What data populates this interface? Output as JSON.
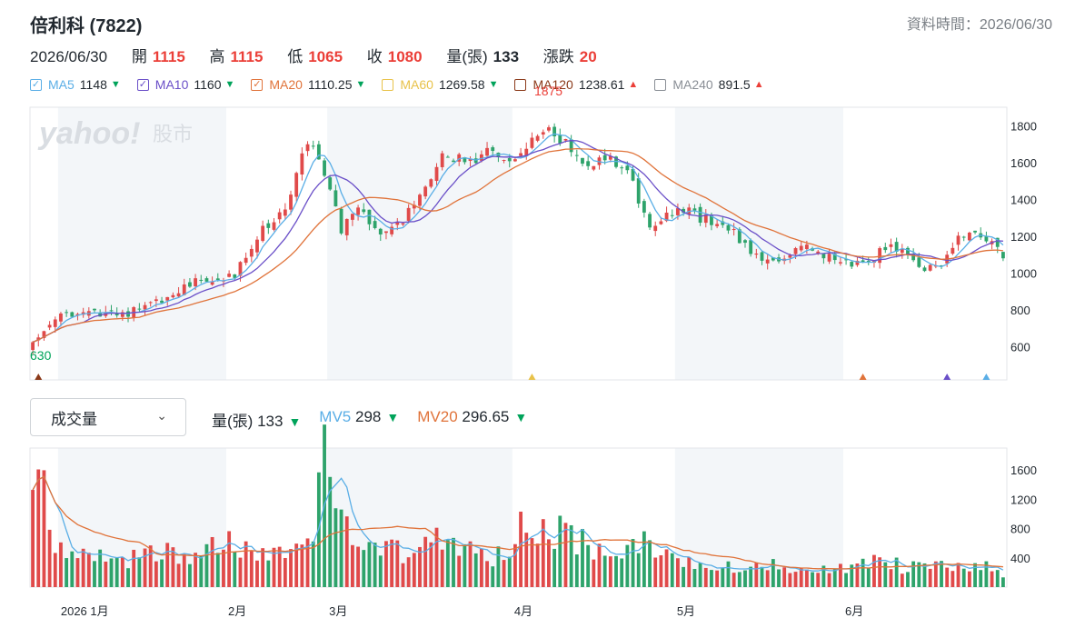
{
  "header": {
    "title": "倍利科 (7822)",
    "datatime_label": "資料時間：2026/06/30"
  },
  "ohlc": {
    "date": "2026/06/30",
    "open_label": "開",
    "open": "1115",
    "high_label": "高",
    "high": "1115",
    "low_label": "低",
    "low": "1065",
    "close_label": "收",
    "close": "1080",
    "vol_label": "量(張)",
    "vol": "133",
    "chg_label": "漲跌",
    "chg": "20"
  },
  "ma_legend": [
    {
      "name": "MA5",
      "value": "1148",
      "dir": "down",
      "color": "#5aaee6"
    },
    {
      "name": "MA10",
      "value": "1160",
      "dir": "down",
      "color": "#6a4fc8"
    },
    {
      "name": "MA20",
      "value": "1110.25",
      "dir": "down",
      "color": "#e0733a"
    },
    {
      "name": "MA60",
      "value": "1269.58",
      "dir": "down",
      "color": "#e8c24a"
    },
    {
      "name": "MA120",
      "value": "1238.61",
      "dir": "up",
      "color": "#8b3a1a"
    },
    {
      "name": "MA240",
      "value": "891.5",
      "dir": "up",
      "color": "#8a8f96"
    }
  ],
  "volume_panel": {
    "select_label": "成交量",
    "vol_label": "量(張)",
    "vol_value": "133",
    "mv5_label": "MV5",
    "mv5_value": "298",
    "mv20_label": "MV20",
    "mv20_value": "296.65",
    "mv5_color": "#5aaee6",
    "mv20_color": "#e0733a"
  },
  "colors": {
    "up": "#e04a4a",
    "down": "#2ea36b",
    "flat": "#555555"
  },
  "watermark": {
    "brand": "yahoo!",
    "sub": "股市"
  },
  "chart_data": {
    "type": "candlestick",
    "price_axis": {
      "ticks": [
        "600",
        "800",
        "1000",
        "1200",
        "1400",
        "1600",
        "1800"
      ],
      "range": [
        420,
        1900
      ]
    },
    "volume_axis": {
      "ticks": [
        "400",
        "800",
        "1200",
        "1600"
      ],
      "range": [
        0,
        1900
      ]
    },
    "x_labels": [
      {
        "label": "2026 1月",
        "index": 5
      },
      {
        "label": "2月",
        "index": 35
      },
      {
        "label": "3月",
        "index": 53
      },
      {
        "label": "4月",
        "index": 86
      },
      {
        "label": "5月",
        "index": 115
      },
      {
        "label": "6月",
        "index": 145
      }
    ],
    "shaded_months": [
      [
        5,
        35
      ],
      [
        53,
        86
      ],
      [
        115,
        145
      ]
    ],
    "annotations": {
      "max": {
        "label": "1875",
        "index": 92,
        "value": 1875
      },
      "min": {
        "label": "630",
        "index": 0,
        "value": 630
      }
    },
    "markers": [
      {
        "index": 1,
        "color": "#8b3a1a"
      },
      {
        "index": 89,
        "color": "#e8c24a"
      },
      {
        "index": 148,
        "color": "#e0733a"
      },
      {
        "index": 163,
        "color": "#6a4fc8"
      },
      {
        "index": 170,
        "color": "#5aaee6"
      }
    ],
    "anchors": [
      [
        0,
        650
      ],
      [
        5,
        800
      ],
      [
        10,
        770
      ],
      [
        15,
        780
      ],
      [
        20,
        810
      ],
      [
        24,
        880
      ],
      [
        28,
        950
      ],
      [
        33,
        960
      ],
      [
        36,
        980
      ],
      [
        40,
        1200
      ],
      [
        45,
        1350
      ],
      [
        49,
        1720
      ],
      [
        52,
        1550
      ],
      [
        55,
        1230
      ],
      [
        58,
        1350
      ],
      [
        62,
        1230
      ],
      [
        66,
        1300
      ],
      [
        70,
        1450
      ],
      [
        73,
        1650
      ],
      [
        78,
        1600
      ],
      [
        82,
        1680
      ],
      [
        86,
        1600
      ],
      [
        88,
        1680
      ],
      [
        92,
        1780
      ],
      [
        95,
        1700
      ],
      [
        98,
        1570
      ],
      [
        102,
        1640
      ],
      [
        104,
        1600
      ],
      [
        107,
        1500
      ],
      [
        110,
        1220
      ],
      [
        113,
        1330
      ],
      [
        116,
        1350
      ],
      [
        119,
        1300
      ],
      [
        123,
        1270
      ],
      [
        127,
        1150
      ],
      [
        131,
        1050
      ],
      [
        134,
        1090
      ],
      [
        137,
        1150
      ],
      [
        140,
        1120
      ],
      [
        143,
        1080
      ],
      [
        146,
        1050
      ],
      [
        149,
        1080
      ],
      [
        153,
        1150
      ],
      [
        156,
        1100
      ],
      [
        159,
        1000
      ],
      [
        162,
        1050
      ],
      [
        165,
        1200
      ],
      [
        168,
        1230
      ],
      [
        170,
        1180
      ],
      [
        173,
        1100
      ]
    ],
    "vol_anchors": [
      [
        0,
        1450
      ],
      [
        2,
        1300
      ],
      [
        4,
        700
      ],
      [
        6,
        450
      ],
      [
        10,
        400
      ],
      [
        15,
        380
      ],
      [
        20,
        420
      ],
      [
        24,
        500
      ],
      [
        28,
        400
      ],
      [
        32,
        550
      ],
      [
        35,
        600
      ],
      [
        40,
        450
      ],
      [
        45,
        500
      ],
      [
        49,
        500
      ],
      [
        52,
        1650
      ],
      [
        54,
        1000
      ],
      [
        56,
        850
      ],
      [
        58,
        700
      ],
      [
        62,
        550
      ],
      [
        66,
        500
      ],
      [
        70,
        650
      ],
      [
        74,
        650
      ],
      [
        78,
        550
      ],
      [
        82,
        420
      ],
      [
        85,
        500
      ],
      [
        88,
        1050
      ],
      [
        90,
        900
      ],
      [
        93,
        800
      ],
      [
        97,
        650
      ],
      [
        100,
        500
      ],
      [
        104,
        500
      ],
      [
        108,
        650
      ],
      [
        112,
        400
      ],
      [
        115,
        350
      ],
      [
        120,
        300
      ],
      [
        125,
        280
      ],
      [
        130,
        330
      ],
      [
        135,
        280
      ],
      [
        140,
        300
      ],
      [
        145,
        220
      ],
      [
        150,
        380
      ],
      [
        155,
        280
      ],
      [
        160,
        300
      ],
      [
        165,
        280
      ],
      [
        170,
        350
      ],
      [
        173,
        120
      ]
    ],
    "count": 174,
    "last": {
      "open": 1115,
      "high": 1115,
      "low": 1065,
      "close": 1080,
      "volume": 133
    }
  }
}
